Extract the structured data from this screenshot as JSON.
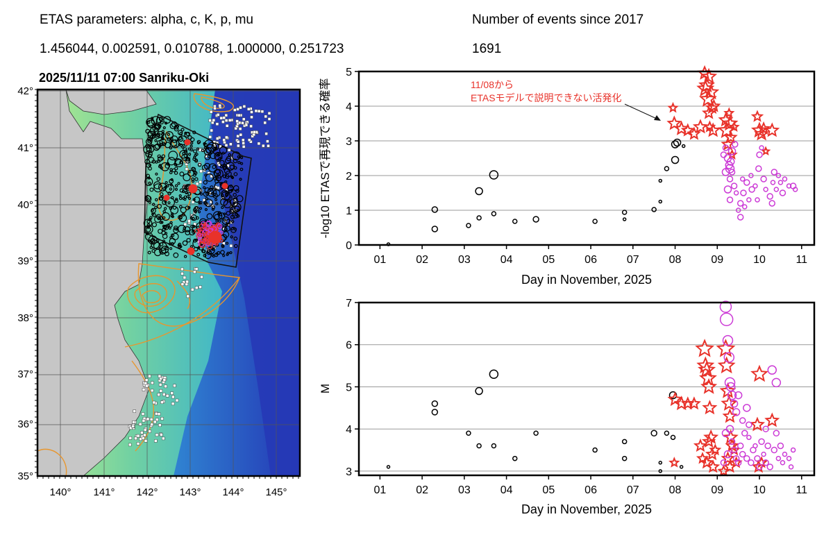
{
  "header": {
    "params_title": "ETAS parameters: alpha, c, K, p, mu",
    "params_values": "1.456044, 0.002591, 0.010788, 1.000000, 0.251723",
    "events_title": "Number of events since 2017",
    "events_count": "1691"
  },
  "map": {
    "title": "2025/11/11 07:00 Sanriku-Oki",
    "lat_labels": [
      "42°",
      "41°",
      "40°",
      "39°",
      "38°",
      "37°",
      "36°",
      "35°"
    ],
    "lon_labels": [
      "140°",
      "141°",
      "142°",
      "143°",
      "144°",
      "145°"
    ],
    "colors": {
      "sea_deep": "#2a3fb8",
      "sea_shelf": "#5fc9d9",
      "land": "#c8c8c8",
      "contour": "#e8962d",
      "quake": "#000000",
      "recent": "#e8322a"
    }
  },
  "chart_data": [
    {
      "type": "scatter",
      "title": "",
      "xlabel": "Day in November, 2025",
      "ylabel": "-log10 ETASで再現できる確率",
      "xlim": [
        0.5,
        11.3
      ],
      "ylim": [
        0,
        5
      ],
      "xticks": [
        "01",
        "02",
        "03",
        "04",
        "05",
        "06",
        "07",
        "08",
        "09",
        "10",
        "11"
      ],
      "yticks": [
        "0",
        "1",
        "2",
        "3",
        "4",
        "5"
      ],
      "grid": true,
      "annotation": {
        "line1": "11/08から",
        "line2": "ETASモデルで説明できない活発化",
        "color": "#e8322a",
        "points_to": [
          7.85,
          3.6
        ]
      },
      "series": [
        {
          "marker": "circle",
          "color": "#000000",
          "points": [
            [
              1.2,
              0.02,
              2
            ],
            [
              2.3,
              1.02,
              4
            ],
            [
              2.3,
              0.46,
              4
            ],
            [
              3.1,
              0.56,
              3
            ],
            [
              3.35,
              1.55,
              5
            ],
            [
              3.35,
              0.78,
              3
            ],
            [
              3.7,
              2.02,
              6
            ],
            [
              3.7,
              0.9,
              3
            ],
            [
              4.2,
              0.68,
              3
            ],
            [
              4.7,
              0.74,
              4
            ],
            [
              6.1,
              0.68,
              3
            ],
            [
              6.8,
              0.94,
              3
            ],
            [
              6.8,
              0.74,
              2
            ],
            [
              7.5,
              1.02,
              3
            ],
            [
              7.65,
              1.25,
              2
            ],
            [
              7.65,
              1.85,
              2
            ],
            [
              7.8,
              2.2,
              3
            ],
            [
              8.0,
              2.45,
              5
            ],
            [
              8.0,
              2.9,
              5
            ],
            [
              8.05,
              2.95,
              5
            ],
            [
              8.2,
              2.85,
              2
            ]
          ]
        },
        {
          "marker": "star",
          "color": "#e8322a",
          "points": [
            [
              7.95,
              3.95,
              6
            ],
            [
              7.98,
              3.5,
              9
            ],
            [
              8.15,
              3.35,
              9
            ],
            [
              8.3,
              3.3,
              8
            ],
            [
              8.45,
              3.2,
              8
            ],
            [
              8.6,
              3.4,
              9
            ],
            [
              8.7,
              4.95,
              9
            ],
            [
              8.72,
              4.5,
              11
            ],
            [
              8.75,
              4.6,
              10
            ],
            [
              8.78,
              4.2,
              11
            ],
            [
              8.8,
              4.85,
              10
            ],
            [
              8.8,
              3.8,
              8
            ],
            [
              8.82,
              3.4,
              7
            ],
            [
              8.85,
              4.4,
              10
            ],
            [
              8.88,
              3.95,
              8
            ],
            [
              8.9,
              3.3,
              9
            ],
            [
              8.92,
              4.0,
              8
            ],
            [
              9.2,
              3.6,
              9
            ],
            [
              9.22,
              3.3,
              11
            ],
            [
              9.25,
              2.9,
              8
            ],
            [
              9.3,
              3.5,
              10
            ],
            [
              9.32,
              3.1,
              8
            ],
            [
              9.35,
              2.6,
              6
            ],
            [
              9.95,
              3.7,
              7
            ],
            [
              10.0,
              3.3,
              10
            ],
            [
              10.05,
              3.2,
              9
            ],
            [
              10.1,
              3.35,
              8
            ],
            [
              10.3,
              3.3,
              9
            ],
            [
              10.15,
              2.7,
              5
            ],
            [
              9.28,
              3.8,
              6
            ],
            [
              9.4,
              3.4,
              6
            ]
          ]
        },
        {
          "marker": "circle",
          "color": "#cc3bd6",
          "points": [
            [
              9.2,
              2.8,
              4
            ],
            [
              9.25,
              2.5,
              5
            ],
            [
              9.28,
              2.3,
              5
            ],
            [
              9.3,
              1.9,
              4
            ],
            [
              9.32,
              2.4,
              5
            ],
            [
              9.35,
              2.1,
              4
            ],
            [
              9.4,
              1.7,
              4
            ],
            [
              9.25,
              1.6,
              5
            ],
            [
              9.3,
              1.3,
              4
            ],
            [
              9.45,
              1.5,
              3
            ],
            [
              9.55,
              1.2,
              4
            ],
            [
              9.55,
              0.8,
              4
            ],
            [
              9.6,
              1.9,
              3
            ],
            [
              9.62,
              1.5,
              4
            ],
            [
              9.7,
              1.8,
              4
            ],
            [
              9.75,
              1.3,
              3
            ],
            [
              9.8,
              2.0,
              3
            ],
            [
              9.82,
              1.6,
              4
            ],
            [
              9.9,
              1.7,
              3
            ],
            [
              9.95,
              1.3,
              3
            ],
            [
              9.98,
              2.2,
              4
            ],
            [
              10.0,
              2.6,
              4
            ],
            [
              10.05,
              2.8,
              3
            ],
            [
              10.1,
              1.9,
              4
            ],
            [
              10.15,
              1.6,
              3
            ],
            [
              10.25,
              1.4,
              4
            ],
            [
              10.3,
              1.2,
              4
            ],
            [
              10.32,
              1.8,
              3
            ],
            [
              10.35,
              2.1,
              4
            ],
            [
              10.4,
              1.6,
              3
            ],
            [
              10.45,
              2.0,
              3
            ],
            [
              10.5,
              1.8,
              3
            ],
            [
              10.55,
              1.5,
              4
            ],
            [
              10.6,
              1.9,
              3
            ],
            [
              10.7,
              1.7,
              3
            ],
            [
              10.8,
              1.7,
              4
            ],
            [
              10.85,
              1.6,
              3
            ],
            [
              9.3,
              2.2,
              6
            ],
            [
              9.2,
              2.1,
              5
            ],
            [
              9.15,
              2.6,
              4
            ],
            [
              9.35,
              2.7,
              5
            ],
            [
              9.42,
              2.9,
              4
            ],
            [
              9.5,
              1.0,
              3
            ],
            [
              9.65,
              1.1,
              3
            ]
          ]
        }
      ]
    },
    {
      "type": "scatter",
      "title": "",
      "xlabel": "Day in November, 2025",
      "ylabel": "M",
      "xlim": [
        0.5,
        11.3
      ],
      "ylim": [
        2.9,
        7.0
      ],
      "xticks": [
        "01",
        "02",
        "03",
        "04",
        "05",
        "06",
        "07",
        "08",
        "09",
        "10",
        "11"
      ],
      "yticks": [
        "3",
        "4",
        "5",
        "6",
        "7"
      ],
      "grid": true,
      "series": [
        {
          "marker": "circle",
          "color": "#000000",
          "points": [
            [
              1.2,
              3.1,
              2
            ],
            [
              2.3,
              4.6,
              4
            ],
            [
              2.3,
              4.4,
              4
            ],
            [
              3.1,
              3.9,
              3
            ],
            [
              3.35,
              3.6,
              3
            ],
            [
              3.35,
              4.9,
              5
            ],
            [
              3.7,
              5.3,
              6
            ],
            [
              3.7,
              3.6,
              3
            ],
            [
              4.2,
              3.3,
              3
            ],
            [
              4.7,
              3.9,
              3
            ],
            [
              6.1,
              3.5,
              3
            ],
            [
              6.8,
              3.7,
              3
            ],
            [
              6.8,
              3.3,
              3
            ],
            [
              7.5,
              3.9,
              4
            ],
            [
              7.65,
              3.2,
              2
            ],
            [
              7.65,
              3.0,
              2
            ],
            [
              7.8,
              3.9,
              3
            ],
            [
              7.95,
              3.8,
              3
            ],
            [
              7.95,
              4.8,
              5
            ],
            [
              8.15,
              3.1,
              2
            ]
          ]
        },
        {
          "marker": "star",
          "color": "#e8322a",
          "points": [
            [
              7.98,
              3.2,
              6
            ],
            [
              8.0,
              4.7,
              9
            ],
            [
              8.15,
              4.6,
              9
            ],
            [
              8.3,
              4.6,
              8
            ],
            [
              8.45,
              4.6,
              8
            ],
            [
              8.6,
              3.6,
              8
            ],
            [
              8.7,
              5.9,
              12
            ],
            [
              8.72,
              5.5,
              11
            ],
            [
              8.75,
              5.4,
              11
            ],
            [
              8.78,
              5.2,
              11
            ],
            [
              8.8,
              5.0,
              10
            ],
            [
              8.82,
              4.5,
              9
            ],
            [
              8.85,
              3.8,
              9
            ],
            [
              8.88,
              3.4,
              8
            ],
            [
              8.9,
              3.1,
              8
            ],
            [
              8.75,
              3.2,
              8
            ],
            [
              8.8,
              3.7,
              8
            ],
            [
              8.65,
              3.3,
              7
            ],
            [
              9.2,
              5.9,
              12
            ],
            [
              9.22,
              5.5,
              11
            ],
            [
              9.25,
              4.9,
              10
            ],
            [
              9.28,
              4.6,
              10
            ],
            [
              9.3,
              4.3,
              9
            ],
            [
              9.32,
              3.8,
              9
            ],
            [
              9.35,
              3.6,
              8
            ],
            [
              9.25,
              3.3,
              8
            ],
            [
              9.3,
              3.1,
              8
            ],
            [
              9.4,
              3.5,
              7
            ],
            [
              9.45,
              3.2,
              7
            ],
            [
              9.95,
              4.1,
              9
            ],
            [
              10.0,
              5.3,
              11
            ],
            [
              10.3,
              4.2,
              9
            ],
            [
              9.98,
              3.1,
              8
            ],
            [
              10.05,
              3.2,
              7
            ],
            [
              8.95,
              3.5,
              7
            ],
            [
              9.15,
              3.0,
              7
            ]
          ]
        },
        {
          "marker": "circle",
          "color": "#cc3bd6",
          "points": [
            [
              9.2,
              6.9,
              8
            ],
            [
              9.22,
              6.6,
              9
            ],
            [
              9.25,
              6.1,
              7
            ],
            [
              9.28,
              5.7,
              7
            ],
            [
              9.3,
              5.1,
              7
            ],
            [
              9.32,
              5.0,
              6
            ],
            [
              9.35,
              4.8,
              6
            ],
            [
              9.4,
              4.6,
              5
            ],
            [
              9.45,
              4.4,
              5
            ],
            [
              9.5,
              4.8,
              5
            ],
            [
              9.3,
              4.0,
              5
            ],
            [
              9.35,
              3.7,
              4
            ],
            [
              9.4,
              3.5,
              4
            ],
            [
              9.45,
              3.3,
              4
            ],
            [
              9.5,
              3.2,
              4
            ],
            [
              9.55,
              3.6,
              4
            ],
            [
              9.6,
              3.4,
              4
            ],
            [
              9.65,
              3.9,
              4
            ],
            [
              9.7,
              3.3,
              4
            ],
            [
              9.75,
              3.8,
              3
            ],
            [
              9.8,
              3.2,
              4
            ],
            [
              9.85,
              3.5,
              4
            ],
            [
              9.9,
              3.6,
              3
            ],
            [
              9.95,
              3.3,
              4
            ],
            [
              10.0,
              3.1,
              4
            ],
            [
              10.05,
              3.7,
              4
            ],
            [
              10.1,
              3.4,
              3
            ],
            [
              10.15,
              3.2,
              4
            ],
            [
              10.2,
              3.6,
              4
            ],
            [
              10.25,
              3.1,
              4
            ],
            [
              10.3,
              5.4,
              6
            ],
            [
              10.4,
              5.1,
              6
            ],
            [
              10.35,
              3.5,
              4
            ],
            [
              10.4,
              3.9,
              4
            ],
            [
              10.45,
              3.3,
              3
            ],
            [
              10.5,
              3.6,
              4
            ],
            [
              10.55,
              3.2,
              3
            ],
            [
              10.6,
              3.4,
              3
            ],
            [
              10.7,
              3.3,
              3
            ],
            [
              10.75,
              3.1,
              3
            ],
            [
              10.8,
              3.5,
              3
            ],
            [
              9.6,
              4.2,
              4
            ],
            [
              9.7,
              4.5,
              5
            ],
            [
              9.75,
              4.1,
              4
            ],
            [
              10.15,
              4.0,
              4
            ],
            [
              9.2,
              3.9,
              5
            ],
            [
              9.25,
              3.4,
              5
            ],
            [
              9.15,
              3.2,
              4
            ]
          ]
        }
      ]
    }
  ]
}
